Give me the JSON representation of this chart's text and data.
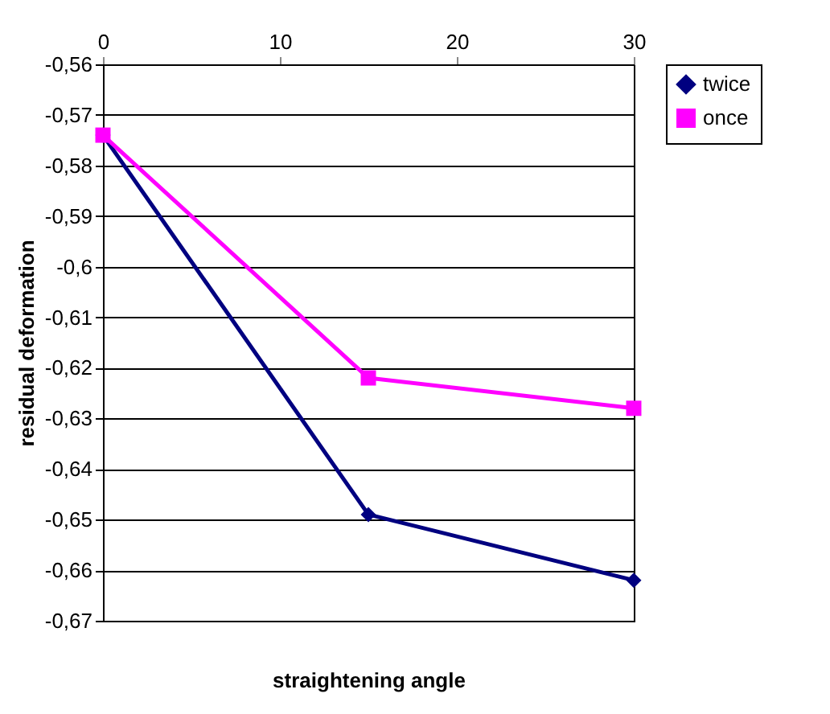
{
  "chart_data": {
    "type": "line",
    "xlabel": "straightening angle",
    "ylabel": "residual deformation",
    "xlim": [
      0,
      30
    ],
    "xticks": [
      0,
      10,
      20,
      30
    ],
    "ylim": [
      -0.67,
      -0.56
    ],
    "yticks": [
      {
        "value": -0.56,
        "label": "-0,56"
      },
      {
        "value": -0.57,
        "label": "-0,57"
      },
      {
        "value": -0.58,
        "label": "-0,58"
      },
      {
        "value": -0.59,
        "label": "-0,59"
      },
      {
        "value": -0.6,
        "label": "-0,6"
      },
      {
        "value": -0.61,
        "label": "-0,61"
      },
      {
        "value": -0.62,
        "label": "-0,62"
      },
      {
        "value": -0.63,
        "label": "-0,63"
      },
      {
        "value": -0.64,
        "label": "-0,64"
      },
      {
        "value": -0.65,
        "label": "-0,65"
      },
      {
        "value": -0.66,
        "label": "-0,66"
      },
      {
        "value": -0.67,
        "label": "-0,67"
      }
    ],
    "grid": "y",
    "legend": "right",
    "series": [
      {
        "name": "twice",
        "color": "#000080",
        "marker": "diamond",
        "x": [
          0,
          15,
          30
        ],
        "values": [
          -0.574,
          -0.649,
          -0.662
        ]
      },
      {
        "name": "once",
        "color": "#ff00ff",
        "marker": "square",
        "x": [
          0,
          15,
          30
        ],
        "values": [
          -0.574,
          -0.622,
          -0.628
        ]
      }
    ]
  }
}
